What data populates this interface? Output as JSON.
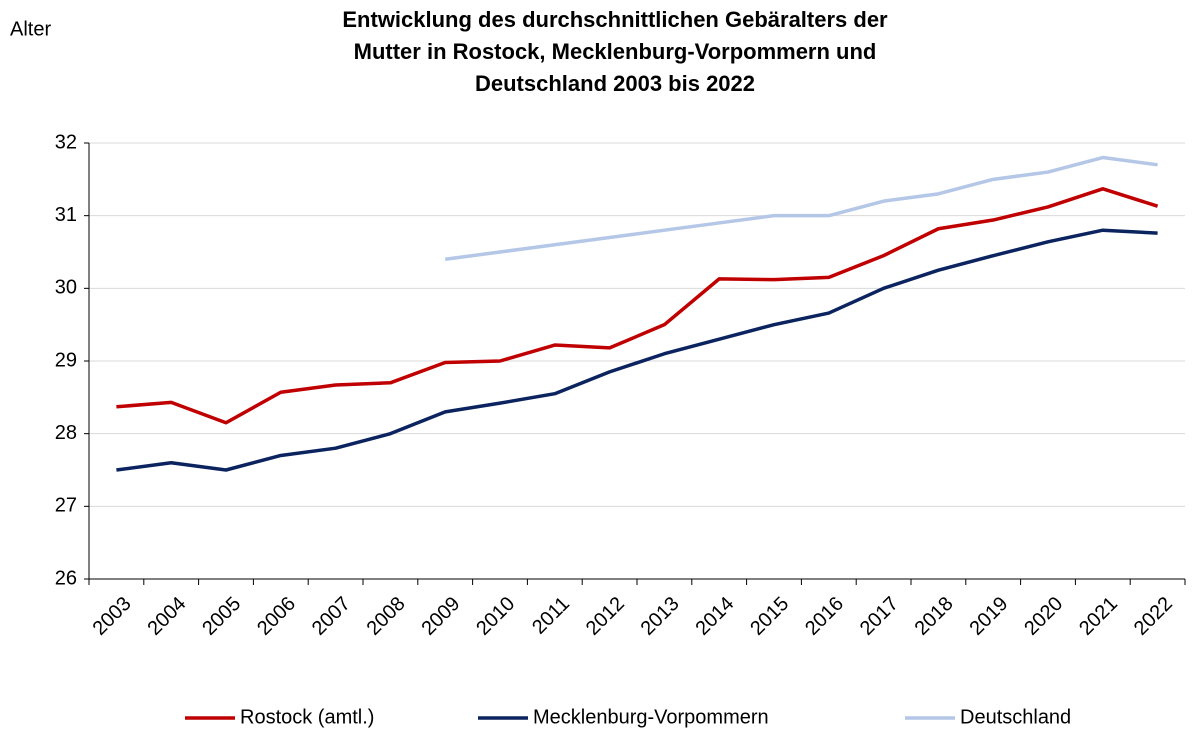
{
  "chart_data": {
    "type": "line",
    "title": [
      "Entwicklung des durchschnittlichen Gebäralters der",
      "Mutter in Rostock, Mecklenburg-Vorpommern und",
      "Deutschland 2003 bis 2022"
    ],
    "y_label": "Alter",
    "categories": [
      "2003",
      "2004",
      "2005",
      "2006",
      "2007",
      "2008",
      "2009",
      "2010",
      "2011",
      "2012",
      "2013",
      "2014",
      "2015",
      "2016",
      "2017",
      "2018",
      "2019",
      "2020",
      "2021",
      "2022"
    ],
    "series": [
      {
        "name": "Rostock (amtl.)",
        "color": "#c00000",
        "values": [
          28.37,
          28.43,
          28.15,
          28.57,
          28.67,
          28.7,
          28.98,
          29.0,
          29.22,
          29.18,
          29.5,
          30.13,
          30.12,
          30.15,
          30.45,
          30.82,
          30.94,
          31.12,
          31.37,
          31.13
        ]
      },
      {
        "name": "Mecklenburg-Vorpommern",
        "color": "#0b2460",
        "values": [
          27.5,
          27.6,
          27.5,
          27.7,
          27.8,
          28.0,
          28.3,
          28.42,
          28.55,
          28.85,
          29.1,
          29.3,
          29.5,
          29.66,
          30.0,
          30.25,
          30.45,
          30.64,
          30.8,
          30.76
        ]
      },
      {
        "name": "Deutschland",
        "color": "#b4c7e7",
        "values": [
          null,
          null,
          null,
          null,
          null,
          null,
          30.4,
          30.5,
          30.6,
          30.7,
          30.8,
          30.9,
          31.0,
          31.0,
          31.2,
          31.3,
          31.5,
          31.6,
          31.8,
          31.7
        ]
      }
    ],
    "ylim": [
      26,
      32
    ],
    "yticks": [
      26,
      27,
      28,
      29,
      30,
      31,
      32
    ],
    "grid": true,
    "legend": "bottom"
  }
}
